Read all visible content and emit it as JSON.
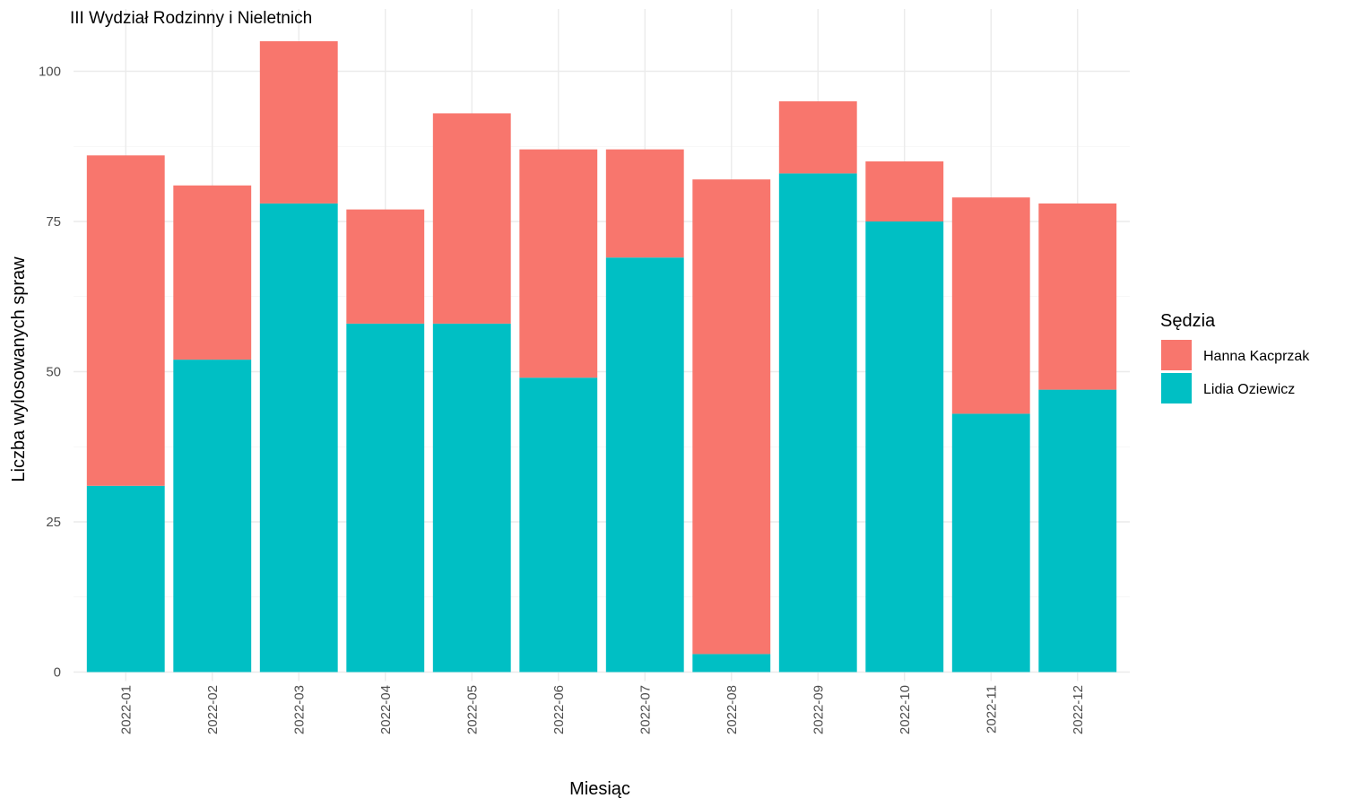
{
  "chart_data": {
    "type": "bar",
    "stacked": true,
    "title": "III Wydział Rodzinny i Nieletnich",
    "xlabel": "Miesiąc",
    "ylabel": "Liczba wylosowanych spraw",
    "ylim": [
      0,
      105
    ],
    "yticks": [
      0,
      25,
      50,
      75,
      100
    ],
    "grid": true,
    "legend": {
      "title": "Sędzia",
      "placement": "right"
    },
    "categories": [
      "2022-01",
      "2022-02",
      "2022-03",
      "2022-04",
      "2022-05",
      "2022-06",
      "2022-07",
      "2022-08",
      "2022-09",
      "2022-10",
      "2022-11",
      "2022-12"
    ],
    "series": [
      {
        "name": "Lidia Oziewicz",
        "color": "#00BFC4",
        "values": [
          31,
          52,
          78,
          58,
          58,
          49,
          69,
          3,
          83,
          75,
          43,
          47
        ]
      },
      {
        "name": "Hanna Kacprzak",
        "color": "#F8766D",
        "values": [
          55,
          29,
          27,
          19,
          35,
          38,
          18,
          79,
          12,
          10,
          36,
          31
        ]
      }
    ],
    "legend_order": [
      "Hanna Kacprzak",
      "Lidia Oziewicz"
    ]
  }
}
